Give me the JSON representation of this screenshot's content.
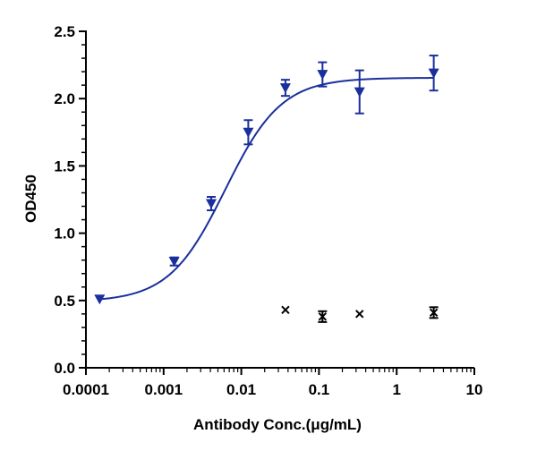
{
  "chart_data": {
    "type": "scatter",
    "xlabel": "Antibody Conc.(μg/mL)",
    "ylabel": "OD450",
    "x_scale": "log",
    "xlim": [
      0.0001,
      10
    ],
    "ylim": [
      0.0,
      2.5
    ],
    "x_ticks": [
      "0.0001",
      "0.001",
      "0.01",
      "0.1",
      "1",
      "10"
    ],
    "y_ticks": [
      "0.0",
      "0.5",
      "1.0",
      "1.5",
      "2.0",
      "2.5"
    ],
    "y_tick_values": [
      0.0,
      0.5,
      1.0,
      1.5,
      2.0,
      2.5
    ],
    "grid": false,
    "series": [
      {
        "marker": "triangle-down",
        "color": "#1a2f9c",
        "points": [
          {
            "x": 0.00015,
            "y": 0.51,
            "err": 0.0
          },
          {
            "x": 0.00137,
            "y": 0.79,
            "err": 0.03
          },
          {
            "x": 0.0041,
            "y": 1.22,
            "err": 0.05
          },
          {
            "x": 0.0123,
            "y": 1.75,
            "err": 0.09
          },
          {
            "x": 0.037,
            "y": 2.08,
            "err": 0.06
          },
          {
            "x": 0.111,
            "y": 2.18,
            "err": 0.09
          },
          {
            "x": 0.333,
            "y": 2.05,
            "err": 0.16
          },
          {
            "x": 3.0,
            "y": 2.19,
            "err": 0.13
          }
        ],
        "fit": {
          "bottom": 0.49,
          "top": 2.155,
          "ec50": 0.0062,
          "hill": 1.2
        }
      },
      {
        "marker": "x",
        "color": "#000000",
        "points": [
          {
            "x": 0.037,
            "y": 0.43,
            "err": 0.0
          },
          {
            "x": 0.111,
            "y": 0.38,
            "err": 0.04
          },
          {
            "x": 0.333,
            "y": 0.4,
            "err": 0.0
          },
          {
            "x": 3.0,
            "y": 0.41,
            "err": 0.04
          }
        ]
      }
    ]
  }
}
